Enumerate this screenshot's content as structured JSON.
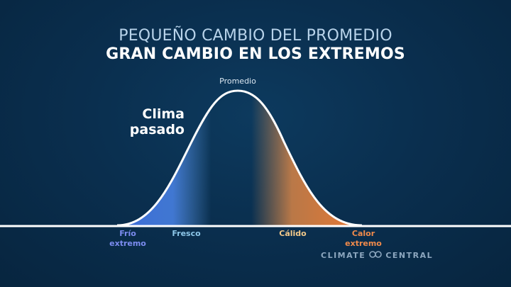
{
  "title": {
    "line1": "PEQUEÑO CAMBIO DEL PROMEDIO",
    "line2": "GRAN CAMBIO EN LOS EXTREMOS"
  },
  "curve": {
    "peak_label": "Promedio",
    "name_line1": "Clima",
    "name_line2": "pasado"
  },
  "categories": [
    {
      "line1": "Frío",
      "line2": "extremo",
      "color": "#7c8cf0"
    },
    {
      "line1": "Fresco",
      "line2": "",
      "color": "#8ec8ea"
    },
    {
      "line1": "Cálido",
      "line2": "",
      "color": "#f3c98a"
    },
    {
      "line1": "Calor",
      "line2": "extremo",
      "color": "#f08a4b"
    }
  ],
  "colors": {
    "cold": "#3f6fe0",
    "hot": "#f07a32",
    "curve": "#ffffff"
  },
  "logo": {
    "left": "CLIMATE",
    "right": "CENTRAL",
    "icon": "climate-central-logo-icon"
  }
}
